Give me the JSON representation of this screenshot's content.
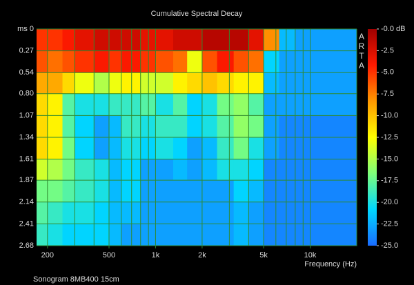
{
  "chart_data": {
    "type": "heatmap",
    "title": "Cumulative Spectral Decay",
    "xlabel": "Frequency (Hz)",
    "annotation": "ARTA",
    "footer": "Sonogram 8MB400 15cm",
    "log_x": true,
    "xlim": [
      170,
      20000
    ],
    "ylim": [
      0,
      2.68
    ],
    "y_reversed": true,
    "xticks": [
      200,
      500,
      {
        "value": 1000,
        "label": "1k"
      },
      {
        "value": 2000,
        "label": "2k"
      },
      {
        "value": 5000,
        "label": "5k"
      },
      {
        "value": 10000,
        "label": "10k"
      }
    ],
    "xgrid": [
      200,
      300,
      400,
      500,
      600,
      700,
      800,
      900,
      1000,
      2000,
      3000,
      4000,
      5000,
      6000,
      7000,
      8000,
      9000,
      10000,
      20000
    ],
    "yticks": [
      {
        "value": 0,
        "label": "ms 0"
      },
      0.27,
      0.54,
      {
        "value": 0.8,
        "label": "0.80"
      },
      1.07,
      1.34,
      1.61,
      1.87,
      2.14,
      2.41,
      2.68
    ],
    "grid": true,
    "grid_color": "#2f8a2f",
    "clim": [
      -25,
      0
    ],
    "colormap": [
      "#1a6cff",
      "#00d8ff",
      "#7dff7a",
      "#ffff00",
      "#ff9900",
      "#ff1a00",
      "#a00000"
    ],
    "cticks": [
      {
        "value": 0,
        "label": "-0.0 dB"
      },
      -2.5,
      {
        "value": -5,
        "label": "-5.0"
      },
      -7.5,
      {
        "value": -10,
        "label": "-10.0"
      },
      -12.5,
      {
        "value": -15,
        "label": "-15.0"
      },
      -17.5,
      {
        "value": -20,
        "label": "-20.0"
      },
      -22.5,
      {
        "value": -25,
        "label": "-25.0"
      }
    ],
    "x_edges": [
      170,
      200,
      250,
      300,
      400,
      500,
      600,
      800,
      1000,
      1300,
      1600,
      2000,
      2500,
      3200,
      4000,
      5000,
      6300,
      8000,
      20000
    ],
    "y_edges": [
      0,
      0.27,
      0.54,
      0.8,
      1.07,
      1.34,
      1.61,
      1.87,
      2.14,
      2.41,
      2.68
    ],
    "z": [
      [
        -5,
        -5,
        -4,
        -3,
        -2,
        -2,
        -2,
        -3,
        -3,
        -2,
        -2,
        -1,
        -1,
        -1,
        -3,
        -8,
        -22,
        -23
      ],
      [
        -6,
        -7,
        -6,
        -5,
        -4,
        -5,
        -4,
        -5,
        -6,
        -7,
        -13,
        -6,
        -4,
        -6,
        -7,
        -21,
        -23,
        -23
      ],
      [
        -9,
        -9,
        -11,
        -13,
        -15,
        -13,
        -12,
        -14,
        -14,
        -12,
        -11,
        -10,
        -11,
        -12,
        -12,
        -22,
        -23,
        -23
      ],
      [
        -11,
        -12,
        -18,
        -20,
        -20,
        -19,
        -19,
        -18,
        -20,
        -18,
        -21,
        -20,
        -17,
        -16,
        -18,
        -23,
        -23,
        -23
      ],
      [
        -11,
        -12,
        -18,
        -21,
        -23,
        -22,
        -19,
        -20,
        -19,
        -19,
        -21,
        -20,
        -18,
        -16,
        -17,
        -23,
        -24,
        -24
      ],
      [
        -11,
        -12,
        -17,
        -21,
        -23,
        -22,
        -20,
        -21,
        -20,
        -21,
        -23,
        -22,
        -19,
        -17,
        -20,
        -23,
        -24,
        -24
      ],
      [
        -14,
        -15,
        -17,
        -19,
        -20,
        -22,
        -21,
        -23,
        -23,
        -22,
        -23,
        -22,
        -20,
        -20,
        -21,
        -24,
        -24,
        -24
      ],
      [
        -17,
        -17,
        -18,
        -19,
        -20,
        -22,
        -21,
        -23,
        -23,
        -23,
        -23,
        -23,
        -23,
        -21,
        -22,
        -24,
        -24,
        -24
      ],
      [
        -18,
        -19,
        -20,
        -20,
        -21,
        -22,
        -22,
        -23,
        -23,
        -23,
        -23,
        -23,
        -23,
        -22,
        -23,
        -24,
        -24,
        -24
      ],
      [
        -19,
        -20,
        -21,
        -21,
        -21,
        -22,
        -23,
        -23,
        -23,
        -23,
        -23,
        -23,
        -23,
        -22,
        -23,
        -24,
        -24,
        -24
      ]
    ]
  }
}
